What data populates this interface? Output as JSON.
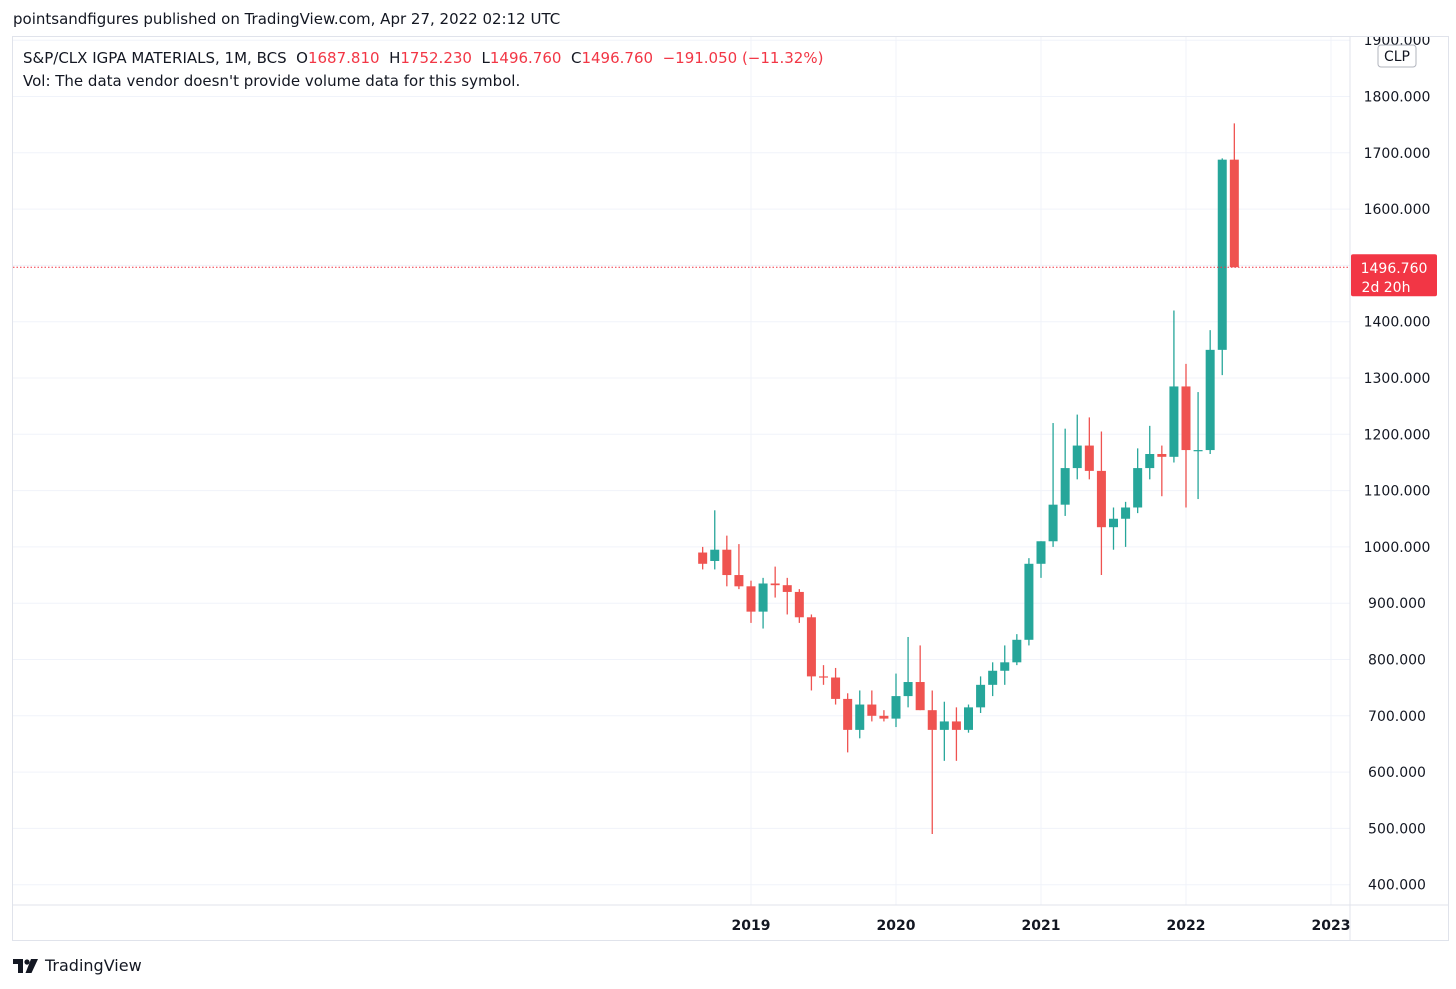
{
  "header": {
    "published": "pointsandfigures published on TradingView.com, Apr 27, 2022 02:12 UTC"
  },
  "legend": {
    "symbol": "S&P/CLX IGPA MATERIALS, 1M, BCS",
    "open_label": "O",
    "open": "1687.810",
    "high_label": "H",
    "high": "1752.230",
    "low_label": "L",
    "low": "1496.760",
    "close_label": "C",
    "close": "1496.760",
    "change": "−191.050 (−11.32%)",
    "vol_text": "Vol: The data vendor doesn't provide volume data for this symbol."
  },
  "currency_badge": "CLP",
  "price_label": {
    "value": "1496.760",
    "countdown": "2d 20h"
  },
  "brand": {
    "name": "TradingView"
  },
  "colors": {
    "up": "#26a69a",
    "down": "#ef5350",
    "grid": "#f0f3fa",
    "price_line": "#f23645"
  },
  "chart_data": {
    "type": "candlestick",
    "y_tick_labels": [
      "1900.000",
      "1800.000",
      "1700.000",
      "1600.000",
      "1500.000",
      "1400.000",
      "1300.000",
      "1200.000",
      "1100.000",
      "1000.000",
      "900.000",
      "800.000",
      "700.000",
      "600.000",
      "500.000",
      "400.000"
    ],
    "x_tick_labels": [
      "2019",
      "2020",
      "2021",
      "2022",
      "2023"
    ],
    "x_tick_years": [
      2019,
      2020,
      2021,
      2022,
      2023
    ],
    "ylim": [
      355,
      1920
    ],
    "last_price": 1496.76,
    "first_candle": {
      "year": 2018,
      "month": 9
    },
    "candles": [
      [
        990,
        1000,
        960,
        970
      ],
      [
        975,
        1065,
        960,
        995
      ],
      [
        995,
        1020,
        930,
        950
      ],
      [
        950,
        1005,
        925,
        930
      ],
      [
        930,
        940,
        865,
        885
      ],
      [
        885,
        945,
        855,
        935
      ],
      [
        935,
        965,
        910,
        932
      ],
      [
        932,
        945,
        880,
        920
      ],
      [
        920,
        925,
        865,
        875
      ],
      [
        875,
        880,
        745,
        770
      ],
      [
        770,
        790,
        755,
        768
      ],
      [
        768,
        785,
        720,
        730
      ],
      [
        730,
        740,
        635,
        675
      ],
      [
        675,
        745,
        660,
        720
      ],
      [
        720,
        745,
        690,
        700
      ],
      [
        700,
        710,
        690,
        695
      ],
      [
        695,
        775,
        680,
        735
      ],
      [
        735,
        840,
        715,
        760
      ],
      [
        760,
        825,
        710,
        710
      ],
      [
        710,
        745,
        490,
        675
      ],
      [
        675,
        725,
        620,
        690
      ],
      [
        690,
        715,
        620,
        675
      ],
      [
        675,
        720,
        670,
        715
      ],
      [
        715,
        770,
        705,
        755
      ],
      [
        755,
        795,
        735,
        780
      ],
      [
        780,
        825,
        755,
        795
      ],
      [
        795,
        845,
        790,
        835
      ],
      [
        835,
        980,
        825,
        970
      ],
      [
        970,
        1010,
        945,
        1010
      ],
      [
        1010,
        1220,
        1000,
        1075
      ],
      [
        1075,
        1210,
        1055,
        1140
      ],
      [
        1140,
        1235,
        1120,
        1180
      ],
      [
        1180,
        1230,
        1120,
        1135
      ],
      [
        1135,
        1205,
        950,
        1035
      ],
      [
        1035,
        1070,
        995,
        1050
      ],
      [
        1050,
        1080,
        1000,
        1070
      ],
      [
        1070,
        1175,
        1060,
        1140
      ],
      [
        1140,
        1215,
        1120,
        1165
      ],
      [
        1165,
        1180,
        1090,
        1160
      ],
      [
        1160,
        1420,
        1150,
        1285
      ],
      [
        1285,
        1325,
        1070,
        1172
      ],
      [
        1172,
        1275,
        1085,
        1172
      ],
      [
        1172,
        1385,
        1165,
        1350
      ],
      [
        1350,
        1690,
        1305,
        1687.81
      ],
      [
        1687.81,
        1752.23,
        1496.76,
        1496.76
      ]
    ]
  }
}
